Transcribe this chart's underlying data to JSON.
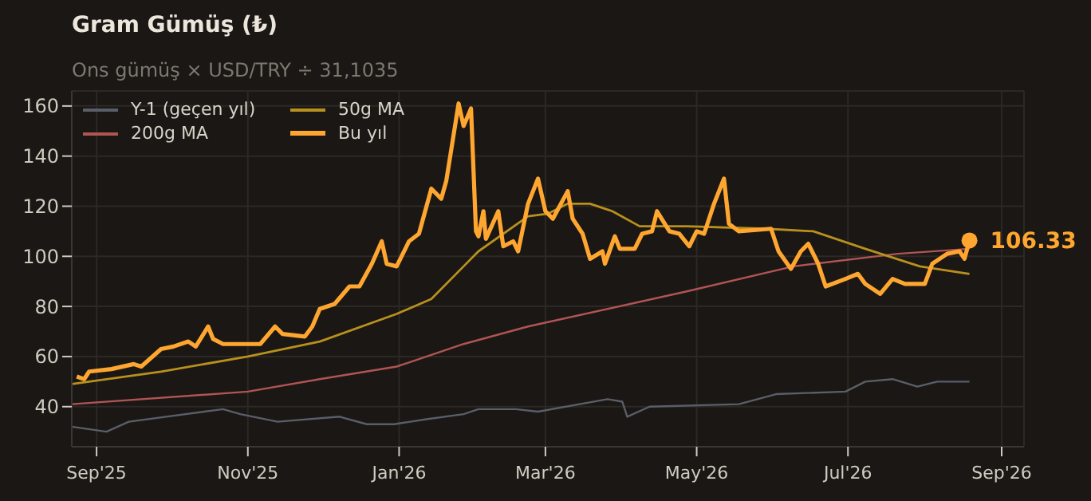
{
  "chart_data": {
    "type": "line",
    "title": "Gram Gümüş (₺)",
    "subtitle": "Ons gümüş × USD/TRY ÷ 31,1035",
    "xlim": [
      "2025-08-22",
      "2026-09-10"
    ],
    "xticks": [
      {
        "value": "2025-09-01",
        "label": "Sep'25"
      },
      {
        "value": "2025-11-01",
        "label": "Nov'25"
      },
      {
        "value": "2026-01-01",
        "label": "Jan'26"
      },
      {
        "value": "2026-03-01",
        "label": "Mar'26"
      },
      {
        "value": "2026-05-01",
        "label": "May'26"
      },
      {
        "value": "2026-07-01",
        "label": "Jul'26"
      },
      {
        "value": "2026-09-01",
        "label": "Sep'26"
      }
    ],
    "ylim": [
      24,
      166
    ],
    "yticks": [
      40,
      60,
      80,
      100,
      120,
      140,
      160
    ],
    "grid": true,
    "legend": "top left",
    "marker": "none",
    "line_style": "solid",
    "series": [
      {
        "name": "Y-1 (geçen yıl)",
        "color": "#5a5e68",
        "x": [
          "2025-08-22",
          "2025-09-05",
          "2025-09-14",
          "2025-10-22",
          "2025-10-29",
          "2025-11-13",
          "2025-12-08",
          "2025-12-19",
          "2025-12-30",
          "2026-01-12",
          "2026-01-27",
          "2026-02-02",
          "2026-02-17",
          "2026-02-26",
          "2026-03-26",
          "2026-04-01",
          "2026-04-03",
          "2026-04-12",
          "2026-05-18",
          "2026-06-02",
          "2026-06-30",
          "2026-07-08",
          "2026-07-19",
          "2026-07-29",
          "2026-08-06",
          "2026-08-19"
        ],
        "values": [
          32,
          30,
          34,
          39,
          37,
          34,
          36,
          33,
          33,
          35,
          37,
          39,
          39,
          38,
          43,
          42,
          36,
          40,
          41,
          45,
          46,
          50,
          51,
          48,
          50,
          50
        ]
      },
      {
        "name": "200g MA",
        "color": "#b05454",
        "x": [
          "2025-08-22",
          "2025-11-01",
          "2025-11-30",
          "2025-12-31",
          "2026-01-27",
          "2026-02-22",
          "2026-04-27",
          "2026-06-09",
          "2026-07-21",
          "2026-08-19"
        ],
        "values": [
          41,
          46,
          51,
          56,
          65,
          72,
          86,
          96,
          101,
          103
        ]
      },
      {
        "name": "50g MA",
        "color": "#b8901e",
        "x": [
          "2025-08-22",
          "2025-09-27",
          "2025-11-01",
          "2025-11-30",
          "2025-12-31",
          "2026-01-14",
          "2026-01-27",
          "2026-02-02",
          "2026-02-22",
          "2026-03-02",
          "2026-03-10",
          "2026-03-19",
          "2026-03-28",
          "2026-04-08",
          "2026-04-27",
          "2026-05-29",
          "2026-06-17",
          "2026-07-08",
          "2026-07-30",
          "2026-08-19"
        ],
        "values": [
          49,
          54,
          60,
          66,
          77,
          83,
          96,
          102,
          116,
          117,
          121,
          121,
          118,
          112,
          112,
          111,
          110,
          103,
          96,
          93
        ]
      },
      {
        "name": "Bu yıl",
        "color": "#ffa630",
        "x": [
          "2025-08-24",
          "2025-08-27",
          "2025-08-29",
          "2025-09-07",
          "2025-09-16",
          "2025-09-19",
          "2025-09-27",
          "2025-10-02",
          "2025-10-08",
          "2025-10-11",
          "2025-10-16",
          "2025-10-18",
          "2025-10-22",
          "2025-10-28",
          "2025-11-06",
          "2025-11-12",
          "2025-11-15",
          "2025-11-24",
          "2025-11-27",
          "2025-11-30",
          "2025-12-06",
          "2025-12-12",
          "2025-12-16",
          "2025-12-21",
          "2025-12-25",
          "2025-12-27",
          "2025-12-31",
          "2026-01-05",
          "2026-01-09",
          "2026-01-14",
          "2026-01-18",
          "2026-01-20",
          "2026-01-25",
          "2026-01-27",
          "2026-01-30",
          "2026-02-01",
          "2026-02-02",
          "2026-02-04",
          "2026-02-05",
          "2026-02-10",
          "2026-02-12",
          "2026-02-16",
          "2026-02-18",
          "2026-02-22",
          "2026-02-26",
          "2026-03-01",
          "2026-03-04",
          "2026-03-10",
          "2026-03-12",
          "2026-03-16",
          "2026-03-19",
          "2026-03-24",
          "2026-03-25",
          "2026-03-29",
          "2026-03-31",
          "2026-04-06",
          "2026-04-09",
          "2026-04-13",
          "2026-04-15",
          "2026-04-20",
          "2026-04-24",
          "2026-04-28",
          "2026-05-01",
          "2026-05-04",
          "2026-05-08",
          "2026-05-12",
          "2026-05-14",
          "2026-05-18",
          "2026-05-31",
          "2026-06-03",
          "2026-06-08",
          "2026-06-12",
          "2026-06-15",
          "2026-06-19",
          "2026-06-22",
          "2026-06-30",
          "2026-07-05",
          "2026-07-08",
          "2026-07-14",
          "2026-07-19",
          "2026-07-24",
          "2026-08-01",
          "2026-08-04",
          "2026-08-10",
          "2026-08-15",
          "2026-08-17",
          "2026-08-19"
        ],
        "values": [
          52,
          51,
          54,
          55,
          57,
          56,
          63,
          64,
          66,
          64,
          72,
          67,
          65,
          65,
          65,
          72,
          69,
          68,
          72,
          79,
          81,
          88,
          88,
          97,
          106,
          97,
          96,
          106,
          109,
          127,
          123,
          130,
          161,
          152,
          159,
          110,
          108,
          118,
          107,
          118,
          104,
          106,
          102,
          121,
          131,
          118,
          115,
          126,
          115,
          109,
          99,
          102,
          97,
          108,
          103,
          103,
          109,
          110,
          118,
          110,
          109,
          104,
          110,
          109,
          121,
          131,
          113,
          110,
          111,
          102,
          95,
          102,
          105,
          97,
          88,
          91,
          93,
          89,
          85,
          91,
          89,
          89,
          97,
          101,
          102,
          99,
          106.33
        ]
      }
    ],
    "annotations": [
      {
        "text": "106.33",
        "x": "2026-08-19",
        "y": 106.33
      }
    ]
  }
}
